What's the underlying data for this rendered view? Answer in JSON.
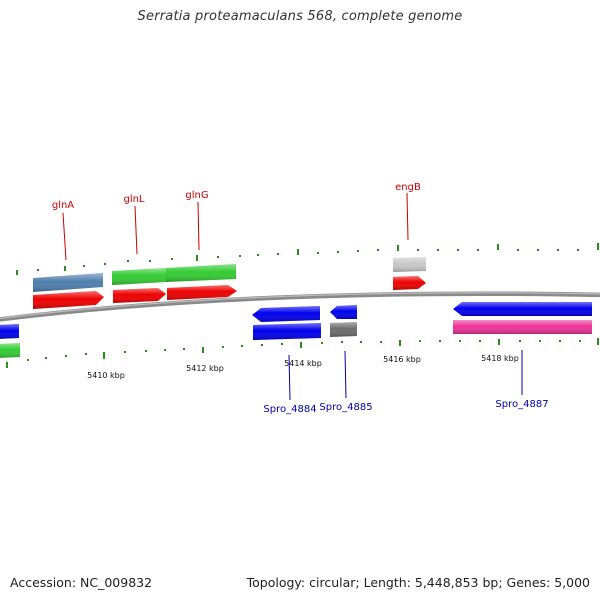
{
  "title": "Serratia proteamaculans 568, complete genome",
  "footer": {
    "accession": "Accession: NC_009832",
    "topology": "Topology: circular; Length: 5,448,853 bp; Genes: 5,000"
  },
  "colors": {
    "backbone": "#8a8a8a",
    "tick": "#2e8b22",
    "dark_blue": "#0000ee",
    "red": "#ee0000",
    "green": "#33cc33",
    "steel_blue": "#4f7fae",
    "gray_light": "#c8c8c8",
    "gray_dark": "#6c6c6c",
    "magenta": "#ee3399",
    "label_red": "#cc0000",
    "label_blue": "#0000aa"
  },
  "scale_labels": [
    "5410 kbp",
    "5412 kbp",
    "5414 kbp",
    "5416 kbp",
    "5418 kbp"
  ],
  "gene_labels": {
    "top": [
      "glnA",
      "glnL",
      "glnG",
      "engB"
    ],
    "bottom": [
      "Spro_4884",
      "Spro_4885",
      "Spro_4887"
    ]
  }
}
